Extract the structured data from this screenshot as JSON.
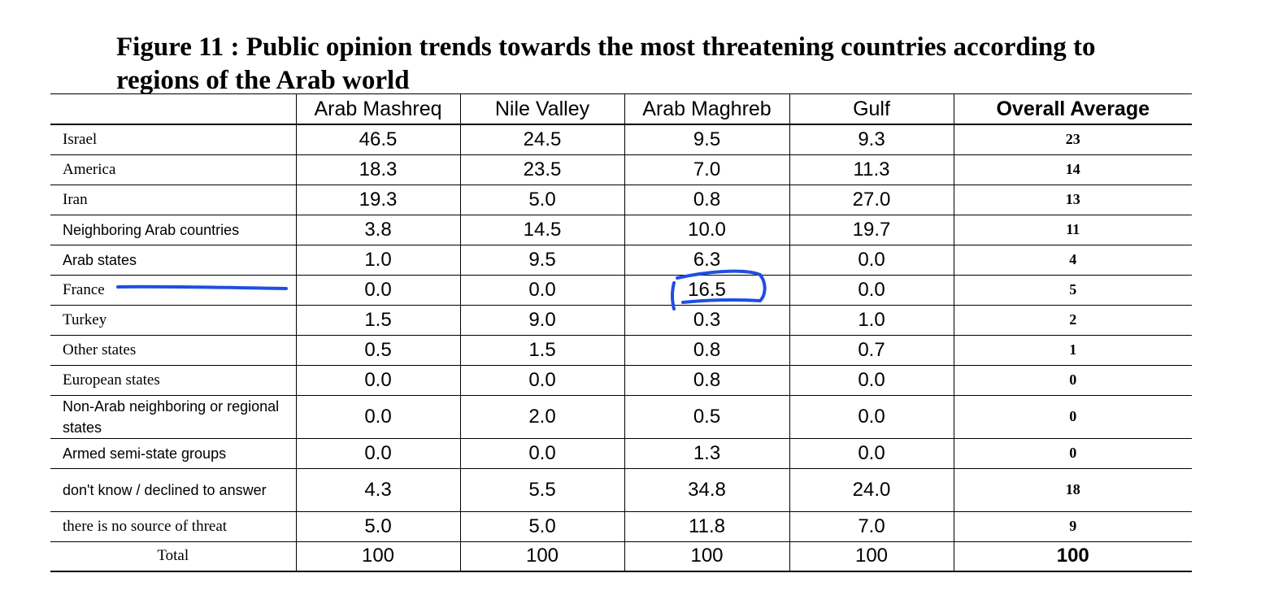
{
  "title": "Figure 11 : Public opinion trends towards the most threatening countries according to regions of the Arab world",
  "columns": [
    "Arab Mashreq",
    "Nile Valley",
    "Arab Maghreb",
    "Gulf",
    "Overall Average"
  ],
  "rows": [
    {
      "label": "Israel",
      "values": [
        "46.5",
        "24.5",
        "9.5",
        "9.3"
      ],
      "avg": "23"
    },
    {
      "label": "America",
      "values": [
        "18.3",
        "23.5",
        "7.0",
        "11.3"
      ],
      "avg": "14"
    },
    {
      "label": "Iran",
      "values": [
        "19.3",
        "5.0",
        "0.8",
        "27.0"
      ],
      "avg": "13"
    },
    {
      "label": "Neighboring Arab countries",
      "values": [
        "3.8",
        "14.5",
        "10.0",
        "19.7"
      ],
      "avg": "11"
    },
    {
      "label": "Arab states",
      "values": [
        "1.0",
        "9.5",
        "6.3",
        "0.0"
      ],
      "avg": "4"
    },
    {
      "label": "France",
      "values": [
        "0.0",
        "0.0",
        "16.5",
        "0.0"
      ],
      "avg": "5"
    },
    {
      "label": "Turkey",
      "values": [
        "1.5",
        "9.0",
        "0.3",
        "1.0"
      ],
      "avg": "2"
    },
    {
      "label": "Other states",
      "values": [
        "0.5",
        "1.5",
        "0.8",
        "0.7"
      ],
      "avg": "1"
    },
    {
      "label": "European states",
      "values": [
        "0.0",
        "0.0",
        "0.8",
        "0.0"
      ],
      "avg": "0"
    },
    {
      "label": "Non-Arab neighboring or regional states",
      "values": [
        "0.0",
        "2.0",
        "0.5",
        "0.0"
      ],
      "avg": "0"
    },
    {
      "label": "Armed semi-state groups",
      "values": [
        "0.0",
        "0.0",
        "1.3",
        "0.0"
      ],
      "avg": "0"
    },
    {
      "label": "don't know / declined to answer",
      "values": [
        "4.3",
        "5.5",
        "34.8",
        "24.0"
      ],
      "avg": "18"
    },
    {
      "label": "there is no source of threat",
      "values": [
        "5.0",
        "5.0",
        "11.8",
        "7.0"
      ],
      "avg": "9"
    },
    {
      "label": "Total",
      "values": [
        "100",
        "100",
        "100",
        "100"
      ],
      "avg": "100"
    }
  ],
  "annotation_color": "#1e4fe0"
}
